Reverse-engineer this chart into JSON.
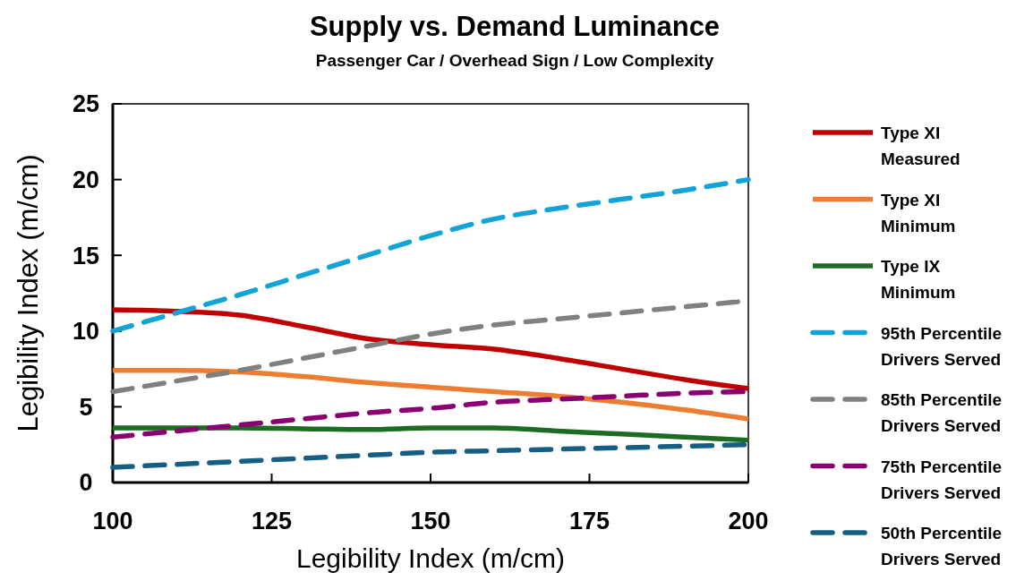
{
  "chart_data": {
    "type": "line",
    "title": "Supply vs. Demand Luminance",
    "subtitle": "Passenger Car / Overhead Sign / Low Complexity",
    "xlabel": "Legibility Index (m/cm)",
    "ylabel": "Legibility Index (m/cm)",
    "x": [
      100,
      110,
      120,
      130,
      140,
      150,
      160,
      170,
      180,
      190,
      200
    ],
    "xlim": [
      100,
      200
    ],
    "xticks": [
      100,
      125,
      150,
      175,
      200
    ],
    "ylim": [
      0,
      25
    ],
    "yticks": [
      0,
      5,
      10,
      15,
      20,
      25
    ],
    "grid": false,
    "legend": "right",
    "series": [
      {
        "name": "Type XI Measured",
        "color": "#c00000",
        "line_style": "solid",
        "values": [
          11.4,
          11.3,
          11.05,
          10.3,
          9.5,
          9.1,
          8.8,
          8.2,
          7.5,
          6.8,
          6.2
        ]
      },
      {
        "name": "Type XI Minimum",
        "color": "#ed7d31",
        "line_style": "solid",
        "values": [
          7.4,
          7.4,
          7.3,
          7.0,
          6.6,
          6.3,
          6.0,
          5.7,
          5.3,
          4.8,
          4.2
        ]
      },
      {
        "name": "Type IX Minimum",
        "color": "#1e6b24",
        "line_style": "solid",
        "values": [
          3.6,
          3.6,
          3.6,
          3.55,
          3.5,
          3.6,
          3.6,
          3.4,
          3.2,
          3.0,
          2.8
        ]
      },
      {
        "name": "95th Percentile Drivers Served",
        "color": "#12a3d8",
        "line_style": "dashed",
        "values": [
          10,
          11.2,
          12.4,
          13.7,
          15,
          16.3,
          17.4,
          18.1,
          18.7,
          19.3,
          20
        ]
      },
      {
        "name": "85th Percentile Drivers Served",
        "color": "#808080",
        "line_style": "dashed",
        "values": [
          6,
          6.7,
          7.4,
          8.2,
          9,
          9.8,
          10.4,
          10.8,
          11.2,
          11.6,
          12
        ]
      },
      {
        "name": "75th Percentile Drivers Served",
        "color": "#8b0070",
        "line_style": "dashed",
        "values": [
          3,
          3.4,
          3.8,
          4.2,
          4.6,
          4.9,
          5.3,
          5.5,
          5.7,
          5.9,
          6
        ]
      },
      {
        "name": "50th Percentile Drivers Served",
        "color": "#155f85",
        "line_style": "dashed",
        "values": [
          1,
          1.2,
          1.4,
          1.6,
          1.8,
          2.0,
          2.1,
          2.2,
          2.3,
          2.4,
          2.5
        ]
      }
    ]
  }
}
